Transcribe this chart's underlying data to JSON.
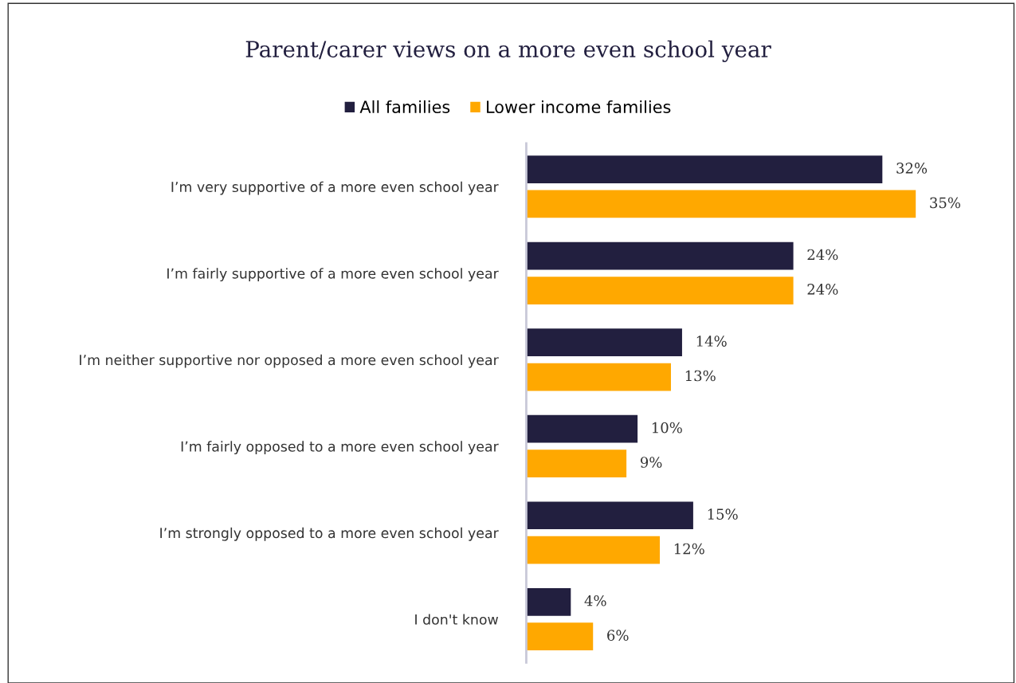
{
  "chart_data": {
    "type": "bar",
    "orientation": "horizontal",
    "title": "Parent/carer views on a more even school year",
    "categories": [
      "I’m very supportive of a more even school year",
      "I’m fairly supportive of a more even school year",
      "I’m neither supportive nor opposed a more even school year",
      "I’m fairly opposed to a more even school year",
      "I’m strongly opposed to a more even school year",
      "I don't know"
    ],
    "series": [
      {
        "name": "All families",
        "color": "#221f3f",
        "values": [
          32,
          24,
          14,
          10,
          15,
          4
        ],
        "value_labels": [
          "32%",
          "24%",
          "14%",
          "10%",
          "15%",
          "4%"
        ]
      },
      {
        "name": "Lower income families",
        "color": "#ffa800",
        "values": [
          35,
          24,
          13,
          9,
          12,
          6
        ],
        "value_labels": [
          "35%",
          "24%",
          "13%",
          "9%",
          "12%",
          "6%"
        ]
      }
    ],
    "legend": "top",
    "grid": false,
    "tick_labels": "y"
  }
}
